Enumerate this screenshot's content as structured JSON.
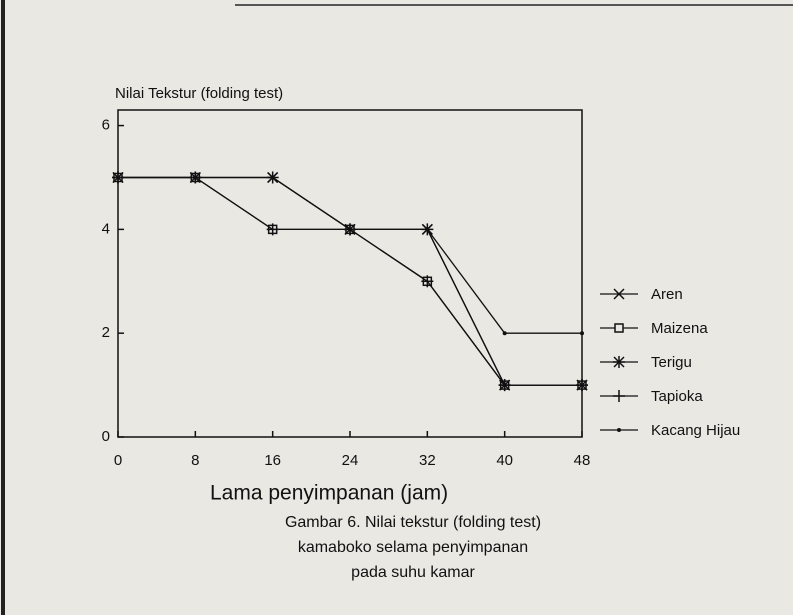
{
  "chart_data": {
    "type": "line",
    "y_label": "Nilai Tekstur (folding test)",
    "x_label": "Lama penyimpanan (jam)",
    "caption": [
      "Gambar 6. Nilai tekstur (folding test)",
      "kamaboko selama  penyimpanan",
      "pada suhu kamar"
    ],
    "x": [
      0,
      8,
      16,
      24,
      32,
      40,
      48
    ],
    "xlim": [
      0,
      48
    ],
    "xticks": [
      0,
      8,
      16,
      24,
      32,
      40,
      48
    ],
    "ylim": [
      0,
      6.3
    ],
    "yticks": [
      0,
      2,
      4,
      6
    ],
    "series": [
      {
        "name": "Aren",
        "color": "#111111",
        "marker": "x",
        "values": [
          5,
          5,
          5,
          4,
          4,
          1,
          1
        ]
      },
      {
        "name": "Maizena",
        "color": "#111111",
        "marker": "square",
        "values": [
          5,
          5,
          4,
          4,
          3,
          1,
          1
        ]
      },
      {
        "name": "Terigu",
        "color": "#111111",
        "marker": "asterisk",
        "values": [
          5,
          5,
          5,
          4,
          4,
          1,
          1
        ]
      },
      {
        "name": "Tapioka",
        "color": "#111111",
        "marker": "plus",
        "values": [
          5,
          5,
          4,
          4,
          3,
          1,
          1
        ]
      },
      {
        "name": "Kacang Hijau",
        "color": "#111111",
        "marker": "dot",
        "values": [
          5,
          5,
          5,
          4,
          4,
          2,
          2
        ]
      }
    ]
  }
}
